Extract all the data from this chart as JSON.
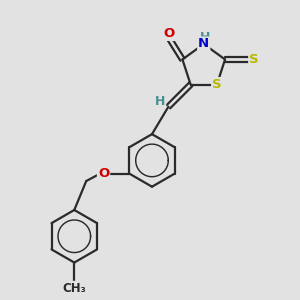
{
  "background_color": "#e2e2e2",
  "bond_color": "#2a2a2a",
  "bond_width": 1.6,
  "atom_colors": {
    "O": "#cc0000",
    "N": "#0000cc",
    "S": "#b8b800",
    "H": "#4a9090",
    "C": "#2a2a2a"
  },
  "font_size": 9.5,
  "fig_width": 3.0,
  "fig_height": 3.0
}
